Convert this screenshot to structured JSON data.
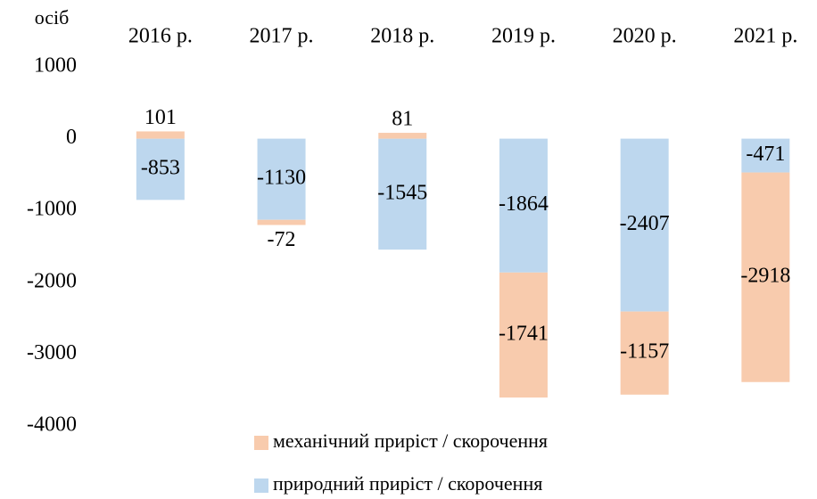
{
  "chart_data": {
    "type": "stacked_bar",
    "y_label": "осіб",
    "categories": [
      "2016 р.",
      "2017 р.",
      "2018 р.",
      "2019 р.",
      "2020 р.",
      "2021 р."
    ],
    "series": [
      {
        "name": "механічний приріст / скорочення",
        "color": "#f8cbad",
        "values": [
          101,
          -72,
          81,
          -1741,
          -1157,
          -2918
        ]
      },
      {
        "name": "природний приріст / скорочення",
        "color": "#bdd7ee",
        "values": [
          -853,
          -1130,
          -1545,
          -1864,
          -2407,
          -471
        ]
      }
    ],
    "ylim": [
      -4000,
      1000
    ],
    "yticks": [
      -4000,
      -3000,
      -2000,
      -1000,
      0,
      1000
    ],
    "grid": false
  }
}
